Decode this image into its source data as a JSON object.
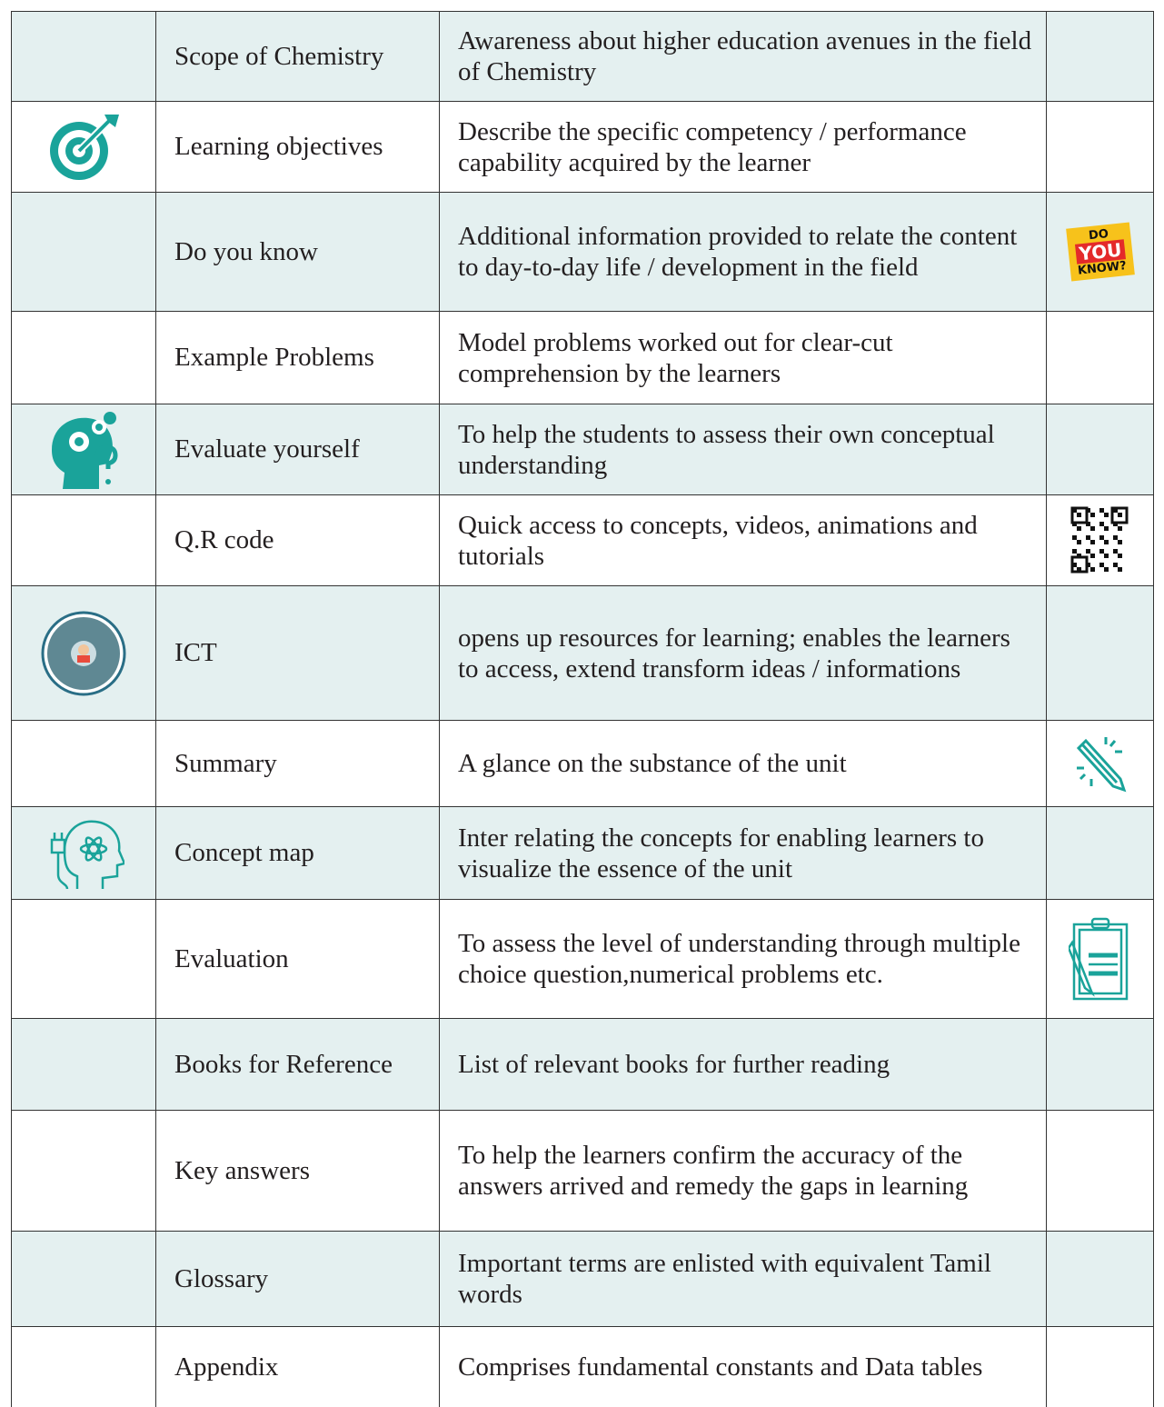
{
  "table": {
    "rows": [
      {
        "label": "Scope of Chemistry",
        "description": "Awareness about higher education avenues in the field of Chemistry"
      },
      {
        "label": "Learning objectives",
        "description": "Describe the specific competency / performance capability acquired by the learner"
      },
      {
        "label": "Do you know",
        "description": "Additional information provided to relate the content to day-to-day life / development in the field",
        "badge": [
          "DO",
          "YOU",
          "KNOW?"
        ]
      },
      {
        "label": "Example Problems",
        "description": "Model problems worked out for clear-cut comprehension by the learners"
      },
      {
        "label": "Evaluate yourself",
        "description": "To help the students to assess their own conceptual understanding"
      },
      {
        "label": "Q.R code",
        "description": "Quick access to concepts, videos, animations and tutorials"
      },
      {
        "label": "ICT",
        "description": "opens up resources for learning; enables the learners to access, extend transform ideas / informations"
      },
      {
        "label": "Summary",
        "description": "A glance on the substance of the unit"
      },
      {
        "label": "Concept map",
        "description": "Inter relating the concepts for enabling learners to visualize the essence of the unit"
      },
      {
        "label": "Evaluation",
        "description": "To assess the level of understanding through multiple choice question,numerical problems etc."
      },
      {
        "label": "Books for Reference",
        "description": "List of relevant books for further reading"
      },
      {
        "label": "Key answers",
        "description": "To help the learners confirm the accuracy of the answers arrived and remedy the gaps in learning"
      },
      {
        "label": "Glossary",
        "description": "Important terms are enlisted with equivalent Tamil words"
      },
      {
        "label": "Appendix",
        "description": "Comprises fundamental constants and Data tables"
      }
    ]
  }
}
